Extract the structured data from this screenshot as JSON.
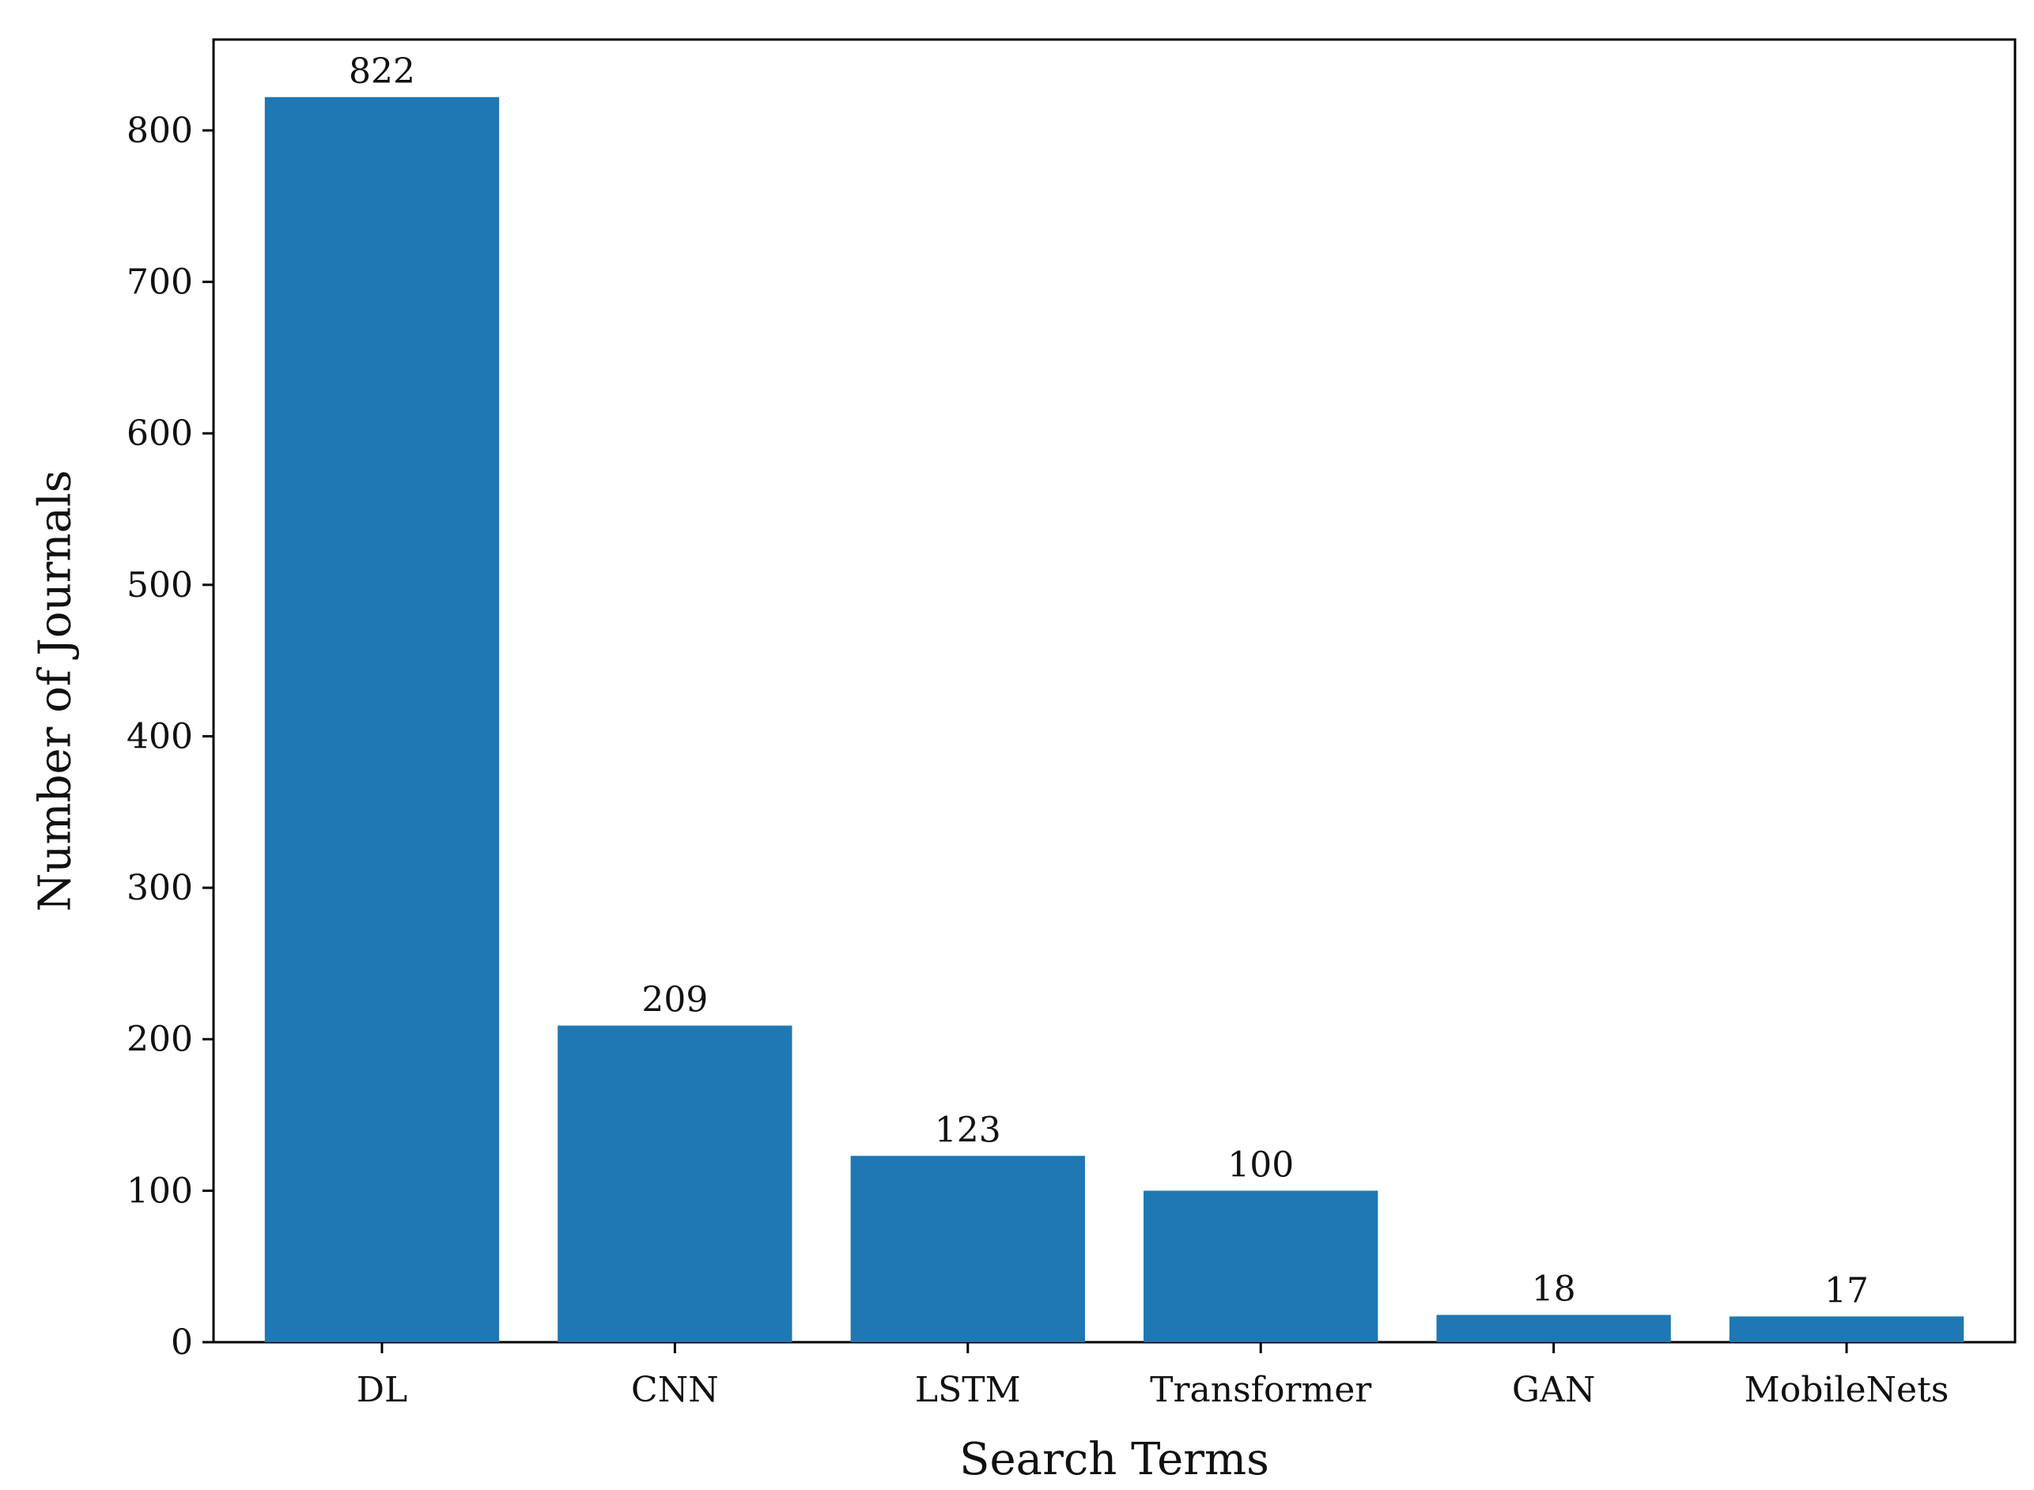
{
  "chart_data": {
    "type": "bar",
    "categories": [
      "DL",
      "CNN",
      "LSTM",
      "Transformer",
      "GAN",
      "MobileNets"
    ],
    "values": [
      822,
      209,
      123,
      100,
      18,
      17
    ],
    "data_labels": [
      "822",
      "209",
      "123",
      "100",
      "18",
      "17"
    ],
    "title": "",
    "xlabel": "Search Terms",
    "ylabel": "Number of Journals",
    "ylim": [
      0,
      860
    ],
    "yticks": [
      0,
      100,
      200,
      300,
      400,
      500,
      600,
      700,
      800
    ],
    "ytick_labels": [
      "0",
      "100",
      "200",
      "300",
      "400",
      "500",
      "600",
      "700",
      "800"
    ],
    "grid": false,
    "legend": "none",
    "bar_color": "#1f77b4",
    "axis_color": "#000000"
  }
}
